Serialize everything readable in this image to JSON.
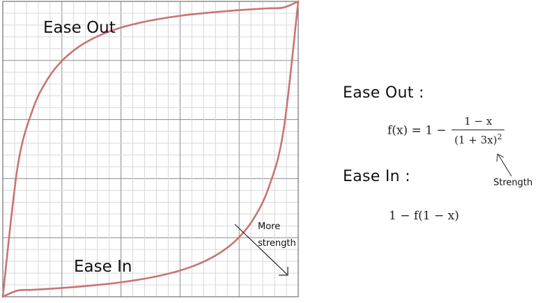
{
  "chart_data": {
    "type": "line",
    "xlim": [
      0,
      1
    ],
    "ylim": [
      0,
      1
    ],
    "grid": true,
    "x": [
      0,
      0.05,
      0.1,
      0.15,
      0.2,
      0.25,
      0.3,
      0.35,
      0.4,
      0.45,
      0.5,
      0.55,
      0.6,
      0.65,
      0.7,
      0.75,
      0.8,
      0.85,
      0.9,
      0.95,
      1
    ],
    "series": [
      {
        "name": "Ease Out",
        "color": "#c87474",
        "values": [
          0,
          0.4386,
          0.6302,
          0.7343,
          0.7984,
          0.8413,
          0.8716,
          0.8941,
          0.9112,
          0.9246,
          0.9352,
          0.9439,
          0.9511,
          0.9571,
          0.9622,
          0.9666,
          0.9704,
          0.9737,
          0.9766,
          0.9792,
          1
        ]
      },
      {
        "name": "Ease In",
        "color": "#c87474",
        "values": [
          0,
          0.0208,
          0.0234,
          0.0263,
          0.0296,
          0.0334,
          0.0378,
          0.0429,
          0.0489,
          0.0561,
          0.0648,
          0.0754,
          0.0888,
          0.1059,
          0.1284,
          0.1587,
          0.2016,
          0.2657,
          0.3698,
          0.5614,
          1
        ]
      }
    ],
    "annotations": {
      "ease_out_label": "Ease Out",
      "ease_in_label": "Ease In",
      "more_strength_line1": "More",
      "more_strength_line2": "strength"
    }
  },
  "formulas": {
    "ease_out_heading": "Ease Out :",
    "ease_out_lhs": "f(x) = 1 −",
    "ease_out_numerator": "1 − x",
    "ease_out_denominator": "(1 + 3x)",
    "ease_out_exponent": "2",
    "strength_label": "Strength",
    "ease_in_heading": "Ease In :",
    "ease_in_formula": "1 − f(1 − x)"
  }
}
